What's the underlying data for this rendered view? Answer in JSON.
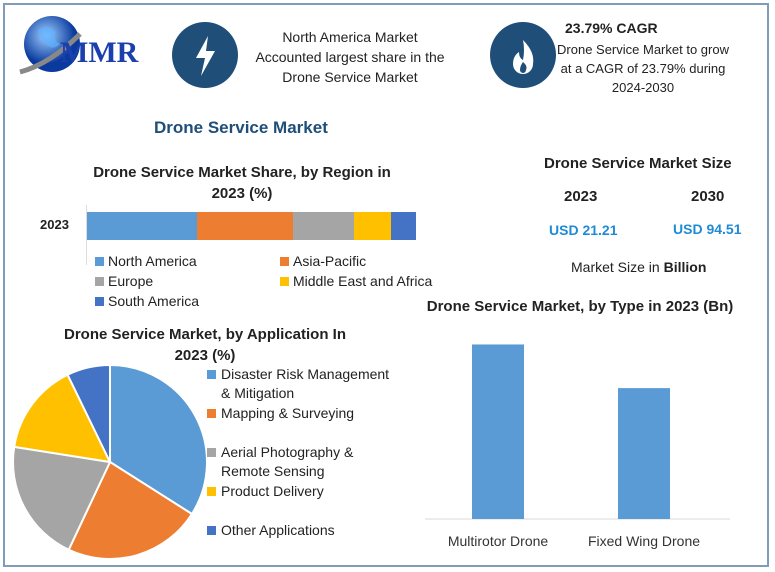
{
  "logo": {
    "text": "MMR"
  },
  "header": {
    "card1": {
      "icon": "lightning-icon",
      "lines": [
        "North America Market",
        "Accounted largest share in the",
        "Drone Service Market"
      ]
    },
    "card2": {
      "icon": "flame-icon",
      "title": "23.79% CAGR",
      "lines": [
        "Drone Service Market to grow",
        "at a CAGR of 23.79% during",
        "2024-2030"
      ]
    }
  },
  "main_title": "Drone Service Market",
  "market_size": {
    "title": "Drone Service Market Size",
    "years": [
      "2023",
      "2030"
    ],
    "values": [
      "USD 21.21",
      "USD 94.51"
    ],
    "note_prefix": "Market Size in ",
    "note_bold": "Billion"
  },
  "colors": {
    "accent": "#1f4e79",
    "value_text": "#1f8bd6"
  },
  "chart_data": [
    {
      "type": "bar",
      "orientation": "horizontal-stacked",
      "title": "Drone Service Market Share, by Region in 2023 (%)",
      "categories": [
        "2023"
      ],
      "series": [
        {
          "name": "North America",
          "values": [
            33.4
          ],
          "color": "#5b9bd5"
        },
        {
          "name": "Asia-Pacific",
          "values": [
            29.2
          ],
          "color": "#ed7d31"
        },
        {
          "name": "Europe",
          "values": [
            18.5
          ],
          "color": "#a5a5a5"
        },
        {
          "name": "Middle East and Africa",
          "values": [
            11.3
          ],
          "color": "#ffc000"
        },
        {
          "name": "South America",
          "values": [
            7.6
          ],
          "color": "#4472c4"
        }
      ],
      "legend": "bottom"
    },
    {
      "type": "pie",
      "title": "Drone Service Market, by Application In 2023 (%)",
      "labels": [
        "Disaster Risk Management & Mitigation",
        "Mapping & Surveying",
        "Aerial Photography & Remote Sensing",
        "Product Delivery",
        "Other Applications"
      ],
      "legend_lines": [
        [
          "Disaster Risk Management",
          "& Mitigation"
        ],
        [
          "Mapping & Surveying"
        ],
        [
          "Aerial Photography &",
          "Remote Sensing"
        ],
        [
          "Product Delivery"
        ],
        [
          "Other Applications"
        ]
      ],
      "values": [
        34,
        23,
        20.5,
        15.3,
        7.2
      ],
      "colors": [
        "#5b9bd5",
        "#ed7d31",
        "#a5a5a5",
        "#ffc000",
        "#4472c4"
      ],
      "legend": "right"
    },
    {
      "type": "bar",
      "title": "Drone Service Market, by Type in 2023 (Bn)",
      "categories": [
        "Multirotor Drone",
        "Fixed Wing Drone"
      ],
      "values": [
        12.12,
        9.09
      ],
      "color": "#5b9bd5",
      "ylim": [
        0,
        12.5
      ]
    }
  ]
}
